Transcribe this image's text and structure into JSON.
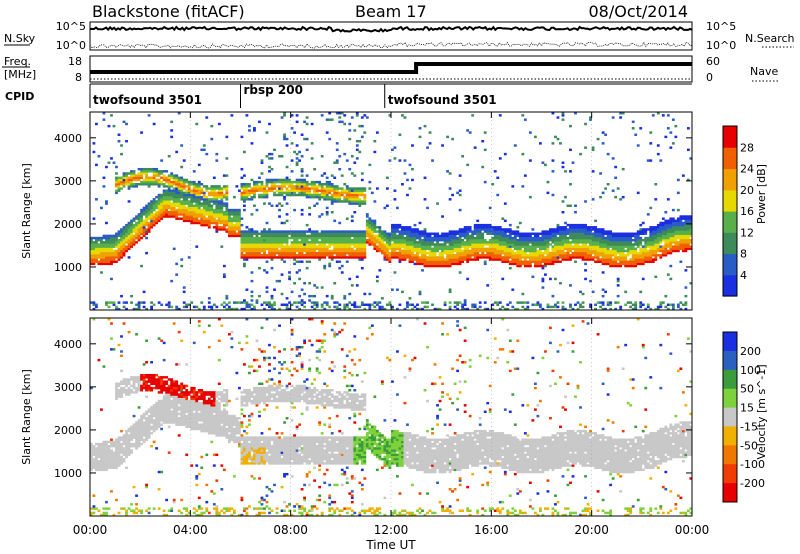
{
  "header": {
    "title": "Blackstone (fitACF)",
    "beam": "Beam 17",
    "date": "08/Oct/2014"
  },
  "nsky_panel": {
    "label": "N.Sky",
    "right_label": "N.Search",
    "left_ticks": [
      "10^5",
      "10^0"
    ],
    "right_ticks": [
      "10^5",
      "10^0"
    ]
  },
  "freq_panel": {
    "label_line1": "Freq.",
    "label_line2": "[MHz]",
    "right_label": "Nave",
    "left_ticks": [
      "18",
      "8"
    ],
    "right_ticks": [
      "60",
      "0"
    ]
  },
  "cpid": {
    "label": "CPID",
    "segments": [
      {
        "name": "twofsound 3501",
        "start_hour": 0,
        "end_hour": 6
      },
      {
        "name": "rbsp 200",
        "start_hour": 6,
        "end_hour": 11.75
      },
      {
        "name": "twofsound 3501",
        "start_hour": 11.75,
        "end_hour": 24
      }
    ]
  },
  "colors": {
    "power": [
      "#1a2fe0",
      "#2a5cc8",
      "#3d8a5a",
      "#57b04a",
      "#e6d800",
      "#f0a000",
      "#f06000",
      "#e60000"
    ],
    "velocity": [
      "#1a2fe0",
      "#2b60c0",
      "#3a9c3a",
      "#7dd13a",
      "#c8c8c8",
      "#f0b000",
      "#f07800",
      "#f03c00",
      "#e60000"
    ]
  },
  "chart_data": [
    {
      "type": "heatmap",
      "name": "power",
      "ylabel": "Slant Range [km]",
      "yticks": [
        1000,
        2000,
        3000,
        4000
      ],
      "ylim": [
        0,
        4600
      ],
      "xlim": [
        0,
        24
      ],
      "colorbar": {
        "label": "Power [dB]",
        "ticks": [
          "4",
          "8",
          "12",
          "16",
          "20",
          "24",
          "28"
        ],
        "range": [
          0,
          32
        ]
      }
    },
    {
      "type": "heatmap",
      "name": "velocity",
      "ylabel": "Slant Range [km]",
      "yticks": [
        1000,
        2000,
        3000,
        4000
      ],
      "ylim": [
        0,
        4600
      ],
      "xlim": [
        0,
        24
      ],
      "colorbar": {
        "label": "Velocity [m s^-1]",
        "ticks": [
          "200",
          "100",
          "50",
          "15",
          "-15",
          "-50",
          "-100",
          "-200"
        ]
      }
    }
  ],
  "xaxis": {
    "label": "Time UT",
    "ticks": [
      {
        "hour": 0,
        "label": "00:00"
      },
      {
        "hour": 4,
        "label": "04:00"
      },
      {
        "hour": 8,
        "label": "08:00"
      },
      {
        "hour": 12,
        "label": "12:00"
      },
      {
        "hour": 16,
        "label": "16:00"
      },
      {
        "hour": 20,
        "label": "20:00"
      },
      {
        "hour": 24,
        "label": "00:00"
      }
    ]
  }
}
